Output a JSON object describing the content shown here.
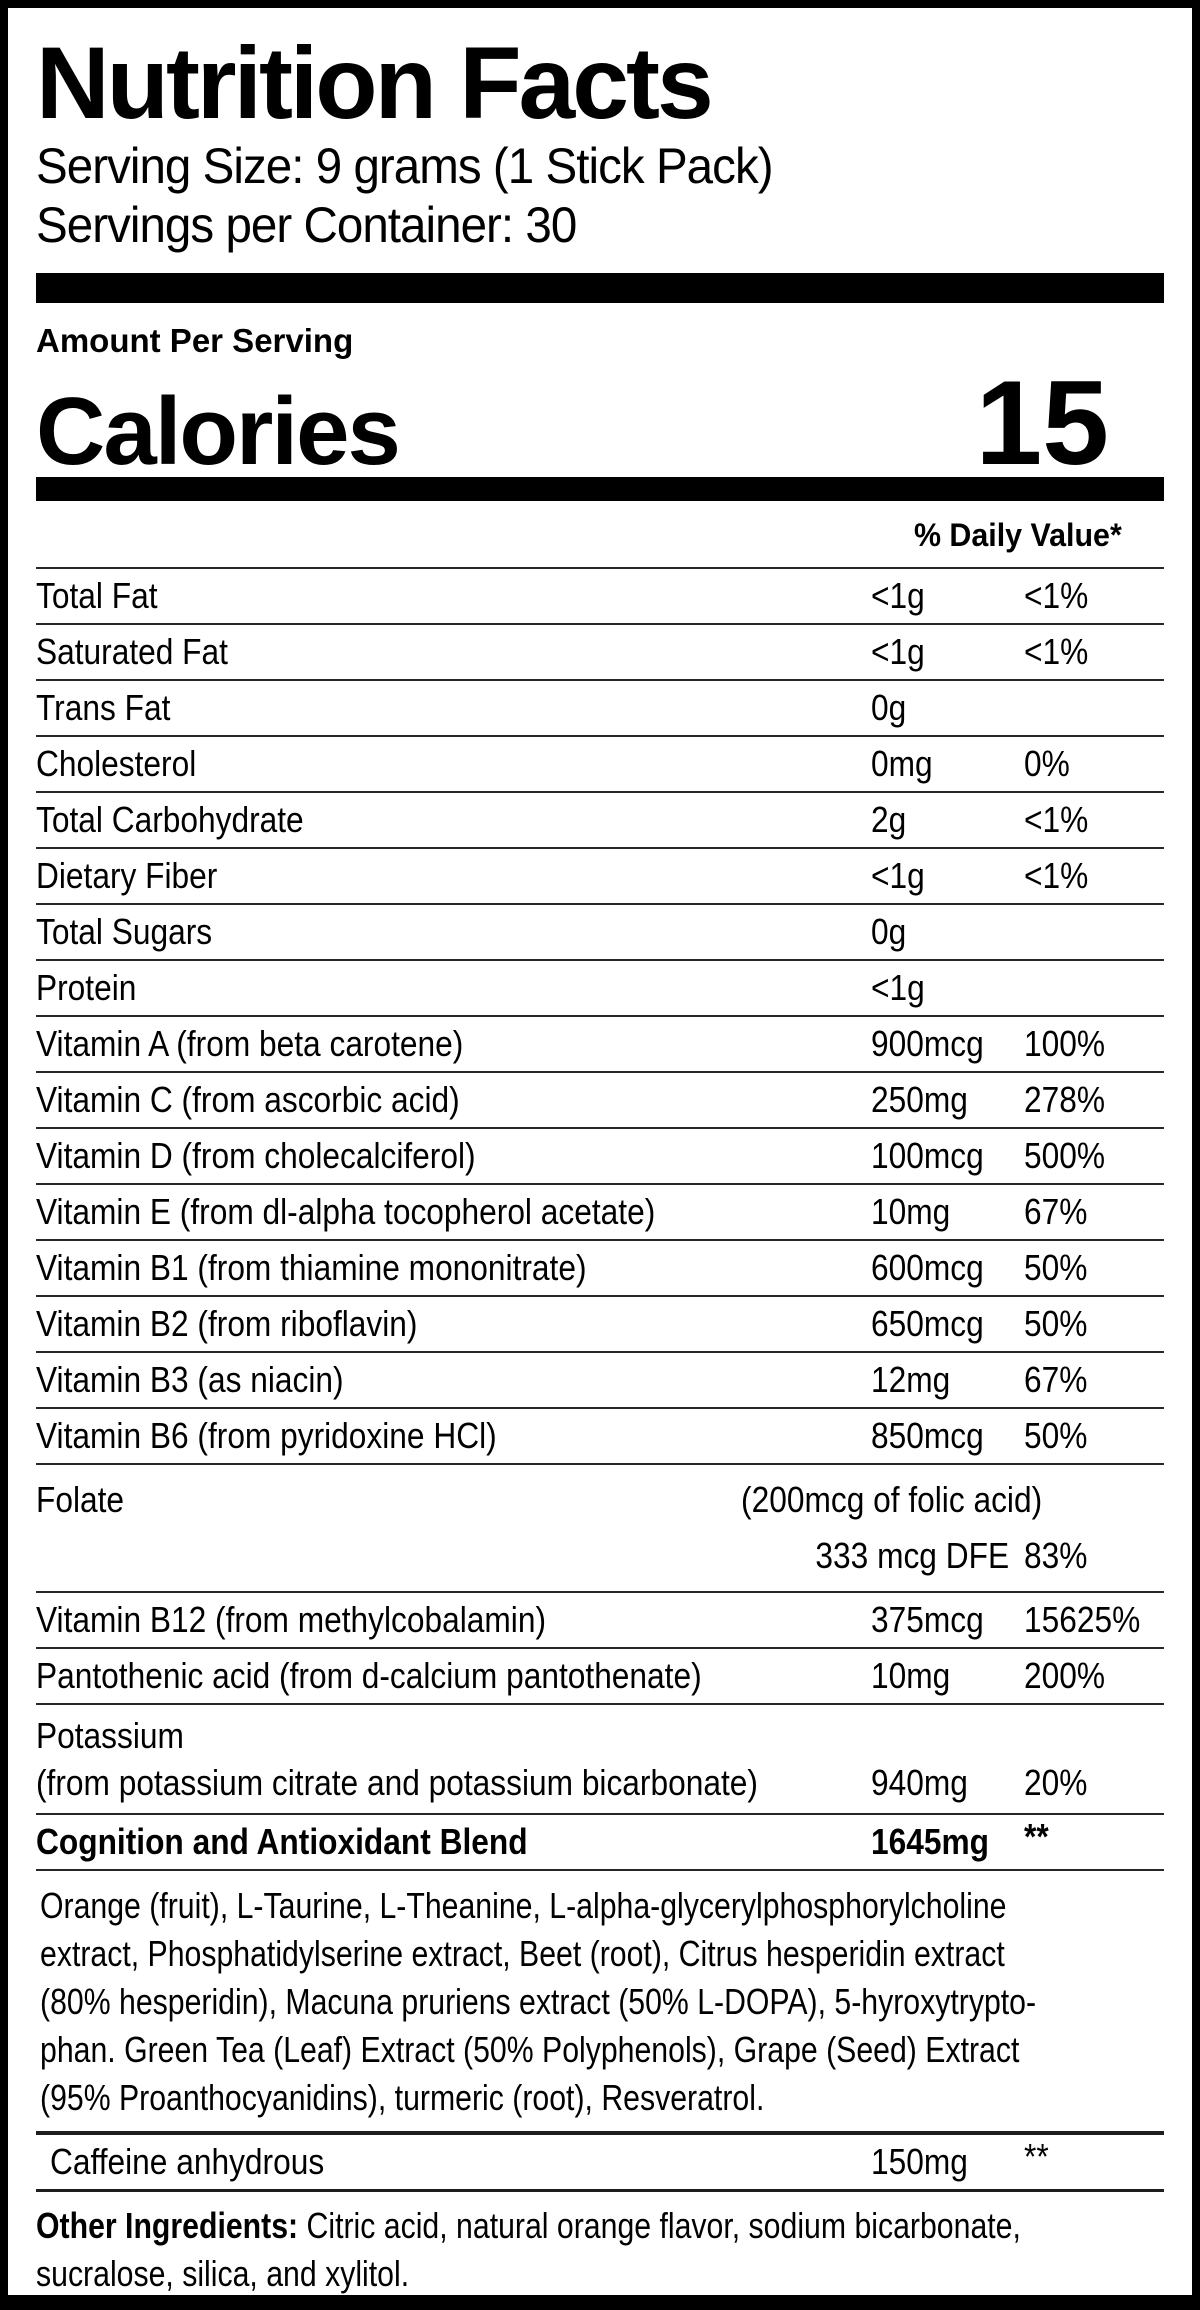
{
  "header": {
    "title": "Nutrition Facts",
    "serving_size": "Serving Size: 9 grams (1 Stick Pack)",
    "servings_per_container": "Servings per Container: 30",
    "amount_per_serving": "Amount Per Serving",
    "calories_label": "Calories",
    "calories_value": "15",
    "daily_value_header": "% Daily Value*"
  },
  "rows": [
    {
      "name": "Total Fat",
      "amount": "<1g",
      "dv": "<1%"
    },
    {
      "name": "Saturated Fat",
      "amount": "<1g",
      "dv": "<1%"
    },
    {
      "name": "Trans Fat",
      "amount": "0g",
      "dv": ""
    },
    {
      "name": "Cholesterol",
      "amount": "0mg",
      "dv": "0%"
    },
    {
      "name": "Total Carbohydrate",
      "amount": "2g",
      "dv": "<1%"
    },
    {
      "name": "Dietary Fiber",
      "amount": "<1g",
      "dv": "<1%"
    },
    {
      "name": "Total Sugars",
      "amount": "0g",
      "dv": ""
    },
    {
      "name": "Protein",
      "amount": "<1g",
      "dv": ""
    },
    {
      "name": "Vitamin A (from beta carotene)",
      "amount": "900mcg",
      "dv": "100%"
    },
    {
      "name": "Vitamin C (from ascorbic acid)",
      "amount": "250mg",
      "dv": "278%"
    },
    {
      "name": "Vitamin D (from cholecalciferol)",
      "amount": "100mcg",
      "dv": "500%"
    },
    {
      "name": "Vitamin E (from dl-alpha tocopherol acetate)",
      "amount": "10mg",
      "dv": "67%"
    },
    {
      "name": "Vitamin B1 (from thiamine mononitrate)",
      "amount": "600mcg",
      "dv": "50%"
    },
    {
      "name": "Vitamin B2 (from riboflavin)",
      "amount": "650mcg",
      "dv": "50%"
    },
    {
      "name": "Vitamin B3 (as niacin)",
      "amount": "12mg",
      "dv": "67%"
    },
    {
      "name": "Vitamin B6 (from pyridoxine HCl)",
      "amount": "850mcg",
      "dv": "50%"
    }
  ],
  "folate": {
    "name": "Folate",
    "note": "(200mcg of folic acid)",
    "amount": "333 mcg DFE",
    "dv": "83%"
  },
  "rows2": [
    {
      "name": "Vitamin B12 (from methylcobalamin)",
      "amount": "375mcg",
      "dv": "15625%"
    },
    {
      "name": "Pantothenic acid (from d-calcium pantothenate)",
      "amount": "10mg",
      "dv": "200%"
    }
  ],
  "potassium": {
    "name": "Potassium",
    "source": "(from potassium citrate and potassium bicarbonate)",
    "amount": "940mg",
    "dv": "20%"
  },
  "blend": {
    "name": "Cognition and Antioxidant Blend",
    "amount": "1645mg",
    "dv": "**",
    "lines": [
      "Orange (fruit), L-Taurine, L-Theanine, L-alpha-glycerylphosphorylcholine",
      "extract, Phosphatidylserine extract, Beet (root), Citrus hesperidin extract",
      "(80% hesperidin), Macuna pruriens extract (50% L-DOPA), 5-hyroxytrypto-",
      "phan. Green Tea (Leaf) Extract (50% Polyphenols), Grape (Seed) Extract",
      "(95% Proanthocyanidins), turmeric (root), Resveratrol."
    ]
  },
  "caffeine": {
    "name": "Caffeine anhydrous",
    "amount": "150mg",
    "dv": "**"
  },
  "other_ingredients": {
    "prefix": "Other Ingredients:",
    "line1_rest": " Citric acid, natural orange flavor, sodium bicarbonate,",
    "line2": "sucralose, silica, and xylitol."
  },
  "colors": {
    "ink": "#000000",
    "background": "#ffffff",
    "hairline": "#262626"
  }
}
